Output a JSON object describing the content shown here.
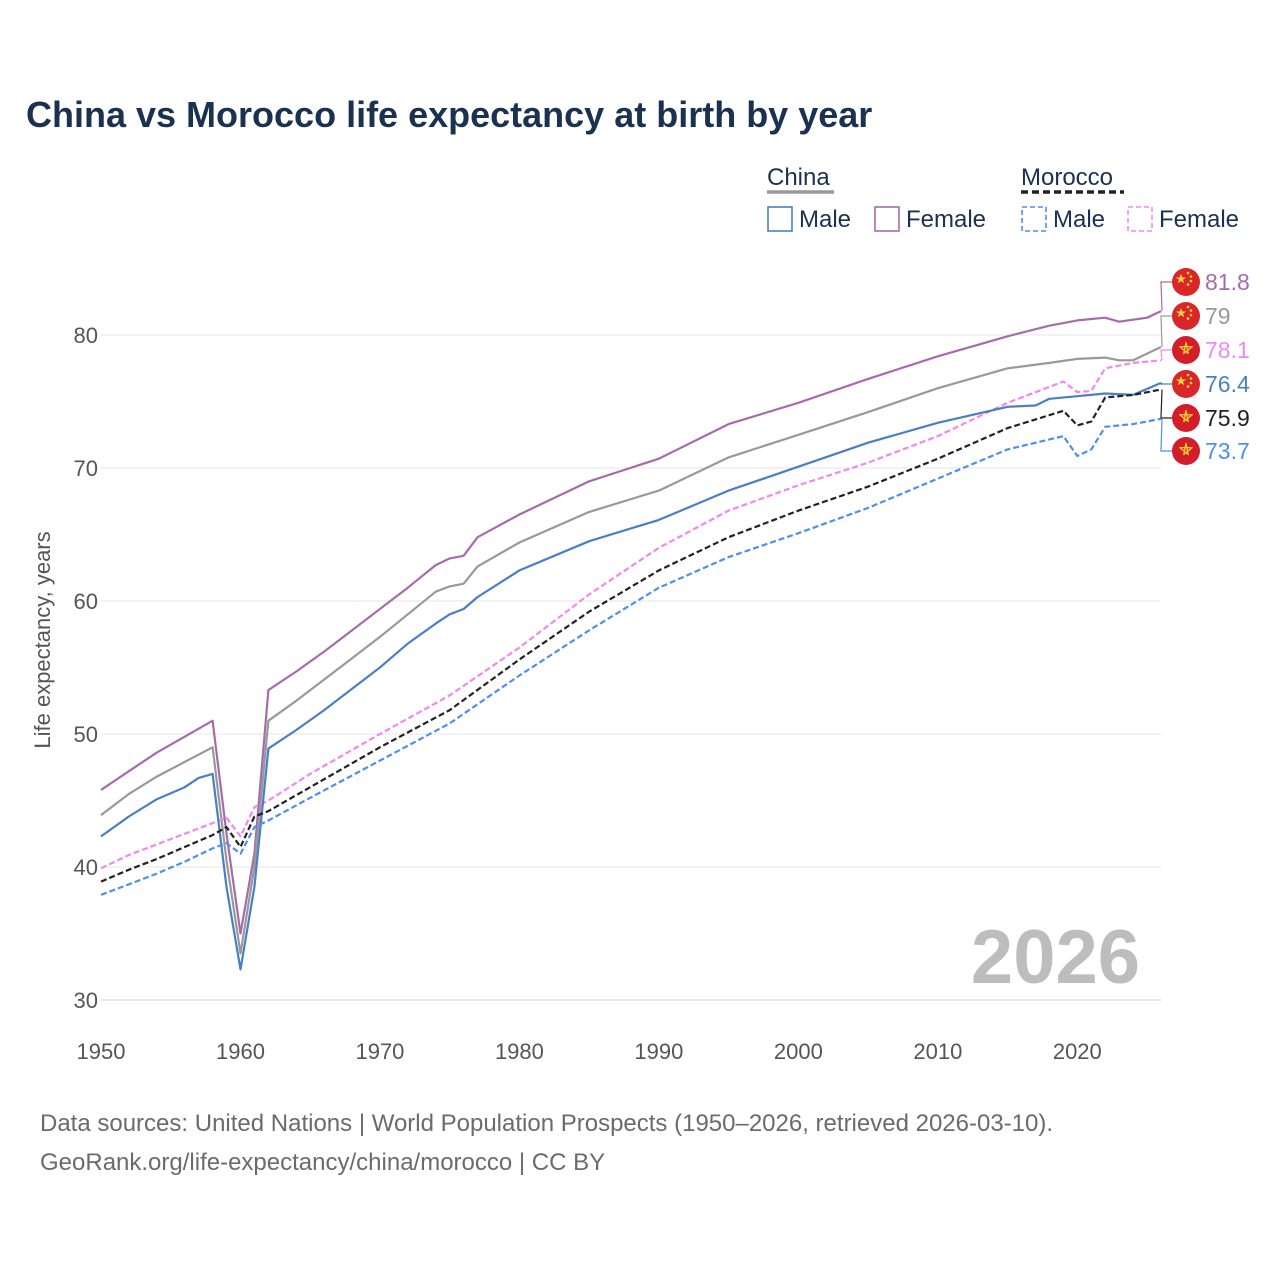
{
  "footer": {
    "line1": "Data sources: United Nations | World Population Prospects (1950–2026, retrieved 2026-03-10).",
    "line2": "GeoRank.org/life-expectancy/china/morocco | CC BY"
  },
  "chart_data": {
    "type": "line",
    "title": "China vs Morocco life expectancy at birth by year",
    "xlabel": "",
    "ylabel": "Life expectancy, years",
    "xlim": [
      1950,
      2026
    ],
    "ylim": [
      30,
      85
    ],
    "x_ticks": [
      1950,
      1960,
      1970,
      1980,
      1990,
      2000,
      2010,
      2020
    ],
    "y_ticks": [
      30,
      40,
      50,
      60,
      70,
      80
    ],
    "grid": true,
    "legend": {
      "groups": [
        {
          "name": "China",
          "color": "#999999",
          "dash": "solid",
          "items": [
            {
              "label": "Male",
              "color": "#4a7ec5"
            },
            {
              "label": "Female",
              "color": "#a56cab"
            }
          ]
        },
        {
          "name": "Morocco",
          "color": "#222222",
          "dash": "dashed",
          "items": [
            {
              "label": "Male",
              "color": "#4d8ff0"
            },
            {
              "label": "Female",
              "color": "#f088f0"
            }
          ]
        }
      ],
      "position": "top-right"
    },
    "watermark_year": "2026",
    "series": [
      {
        "name": "China Female",
        "country": "China",
        "flag": "china",
        "dash": "solid",
        "color": "#a56cab",
        "end_label": "81.8",
        "points": [
          [
            1950,
            45.8
          ],
          [
            1952,
            47.2
          ],
          [
            1954,
            48.6
          ],
          [
            1956,
            49.8
          ],
          [
            1958,
            51.0
          ],
          [
            1959,
            42.5
          ],
          [
            1960,
            35.0
          ],
          [
            1961,
            41.0
          ],
          [
            1962,
            53.3
          ],
          [
            1964,
            54.7
          ],
          [
            1966,
            56.2
          ],
          [
            1968,
            57.8
          ],
          [
            1970,
            59.4
          ],
          [
            1972,
            61.0
          ],
          [
            1974,
            62.7
          ],
          [
            1975,
            63.2
          ],
          [
            1976,
            63.4
          ],
          [
            1977,
            64.8
          ],
          [
            1980,
            66.5
          ],
          [
            1985,
            69.0
          ],
          [
            1990,
            70.7
          ],
          [
            1995,
            73.3
          ],
          [
            2000,
            74.9
          ],
          [
            2005,
            76.7
          ],
          [
            2010,
            78.4
          ],
          [
            2015,
            79.9
          ],
          [
            2018,
            80.7
          ],
          [
            2020,
            81.1
          ],
          [
            2022,
            81.3
          ],
          [
            2023,
            81.0
          ],
          [
            2025,
            81.3
          ],
          [
            2026,
            81.8
          ]
        ]
      },
      {
        "name": "China",
        "country": "China",
        "flag": "china",
        "dash": "solid",
        "color": "#999999",
        "end_label": "79",
        "points": [
          [
            1950,
            43.9
          ],
          [
            1952,
            45.5
          ],
          [
            1954,
            46.8
          ],
          [
            1956,
            47.9
          ],
          [
            1958,
            49.0
          ],
          [
            1959,
            40.5
          ],
          [
            1960,
            33.5
          ],
          [
            1961,
            40.0
          ],
          [
            1962,
            51.0
          ],
          [
            1964,
            52.5
          ],
          [
            1966,
            54.1
          ],
          [
            1968,
            55.7
          ],
          [
            1970,
            57.3
          ],
          [
            1972,
            59.0
          ],
          [
            1974,
            60.7
          ],
          [
            1975,
            61.1
          ],
          [
            1976,
            61.3
          ],
          [
            1977,
            62.6
          ],
          [
            1980,
            64.4
          ],
          [
            1985,
            66.7
          ],
          [
            1990,
            68.3
          ],
          [
            1995,
            70.8
          ],
          [
            2000,
            72.5
          ],
          [
            2005,
            74.2
          ],
          [
            2010,
            76.0
          ],
          [
            2015,
            77.5
          ],
          [
            2018,
            77.9
          ],
          [
            2020,
            78.2
          ],
          [
            2022,
            78.3
          ],
          [
            2023,
            78.1
          ],
          [
            2024,
            78.1
          ],
          [
            2026,
            79.1
          ]
        ]
      },
      {
        "name": "Morocco Female",
        "country": "Morocco",
        "flag": "morocco",
        "dash": "dashed",
        "color": "#f088f0",
        "end_label": "78.1",
        "points": [
          [
            1950,
            39.9
          ],
          [
            1952,
            40.9
          ],
          [
            1954,
            41.7
          ],
          [
            1956,
            42.5
          ],
          [
            1958,
            43.3
          ],
          [
            1959,
            43.7
          ],
          [
            1960,
            42.3
          ],
          [
            1961,
            44.5
          ],
          [
            1962,
            45.0
          ],
          [
            1965,
            47.0
          ],
          [
            1970,
            50.0
          ],
          [
            1975,
            52.9
          ],
          [
            1980,
            56.5
          ],
          [
            1985,
            60.5
          ],
          [
            1990,
            64.0
          ],
          [
            1995,
            66.8
          ],
          [
            2000,
            68.7
          ],
          [
            2005,
            70.4
          ],
          [
            2010,
            72.4
          ],
          [
            2015,
            74.9
          ],
          [
            2019,
            76.5
          ],
          [
            2020,
            75.7
          ],
          [
            2021,
            75.8
          ],
          [
            2022,
            77.5
          ],
          [
            2024,
            77.9
          ],
          [
            2026,
            78.1
          ]
        ]
      },
      {
        "name": "China Male",
        "country": "China",
        "flag": "china",
        "dash": "solid",
        "color": "#4a7ec5",
        "end_label": "76.4",
        "points": [
          [
            1950,
            42.3
          ],
          [
            1952,
            43.8
          ],
          [
            1954,
            45.1
          ],
          [
            1956,
            46.0
          ],
          [
            1957,
            46.7
          ],
          [
            1958,
            47.0
          ],
          [
            1959,
            38.5
          ],
          [
            1960,
            32.3
          ],
          [
            1961,
            38.5
          ],
          [
            1962,
            48.9
          ],
          [
            1964,
            50.3
          ],
          [
            1966,
            51.8
          ],
          [
            1968,
            53.4
          ],
          [
            1970,
            55.0
          ],
          [
            1972,
            56.8
          ],
          [
            1974,
            58.3
          ],
          [
            1975,
            59.0
          ],
          [
            1976,
            59.4
          ],
          [
            1977,
            60.3
          ],
          [
            1980,
            62.3
          ],
          [
            1985,
            64.5
          ],
          [
            1990,
            66.1
          ],
          [
            1995,
            68.3
          ],
          [
            2000,
            70.1
          ],
          [
            2005,
            71.9
          ],
          [
            2010,
            73.4
          ],
          [
            2015,
            74.6
          ],
          [
            2017,
            74.7
          ],
          [
            2018,
            75.2
          ],
          [
            2020,
            75.4
          ],
          [
            2022,
            75.6
          ],
          [
            2024,
            75.5
          ],
          [
            2026,
            76.4
          ]
        ]
      },
      {
        "name": "Morocco",
        "country": "Morocco",
        "flag": "morocco",
        "dash": "dashed",
        "color": "#222222",
        "end_label": "75.9",
        "points": [
          [
            1950,
            38.9
          ],
          [
            1952,
            39.8
          ],
          [
            1954,
            40.6
          ],
          [
            1956,
            41.5
          ],
          [
            1958,
            42.4
          ],
          [
            1959,
            43.0
          ],
          [
            1960,
            41.5
          ],
          [
            1961,
            43.8
          ],
          [
            1962,
            44.2
          ],
          [
            1965,
            46.0
          ],
          [
            1970,
            49.0
          ],
          [
            1975,
            51.8
          ],
          [
            1980,
            55.6
          ],
          [
            1985,
            59.2
          ],
          [
            1990,
            62.3
          ],
          [
            1995,
            64.8
          ],
          [
            2000,
            66.8
          ],
          [
            2005,
            68.6
          ],
          [
            2010,
            70.7
          ],
          [
            2015,
            73.0
          ],
          [
            2019,
            74.3
          ],
          [
            2020,
            73.2
          ],
          [
            2021,
            73.5
          ],
          [
            2022,
            75.3
          ],
          [
            2024,
            75.5
          ],
          [
            2026,
            75.9
          ]
        ]
      },
      {
        "name": "Morocco Male",
        "country": "Morocco",
        "flag": "morocco",
        "dash": "dashed",
        "color": "#4d8ff0",
        "end_label": "73.7",
        "points": [
          [
            1950,
            37.9
          ],
          [
            1952,
            38.7
          ],
          [
            1954,
            39.5
          ],
          [
            1956,
            40.4
          ],
          [
            1958,
            41.4
          ],
          [
            1959,
            41.8
          ],
          [
            1960,
            41.0
          ],
          [
            1961,
            43.0
          ],
          [
            1962,
            43.5
          ],
          [
            1965,
            45.2
          ],
          [
            1970,
            48.0
          ],
          [
            1975,
            50.8
          ],
          [
            1980,
            54.4
          ],
          [
            1985,
            57.8
          ],
          [
            1990,
            61.0
          ],
          [
            1995,
            63.3
          ],
          [
            2000,
            65.1
          ],
          [
            2005,
            67.0
          ],
          [
            2010,
            69.2
          ],
          [
            2015,
            71.4
          ],
          [
            2019,
            72.4
          ],
          [
            2020,
            70.9
          ],
          [
            2021,
            71.4
          ],
          [
            2022,
            73.1
          ],
          [
            2024,
            73.3
          ],
          [
            2026,
            73.7
          ]
        ]
      }
    ]
  }
}
